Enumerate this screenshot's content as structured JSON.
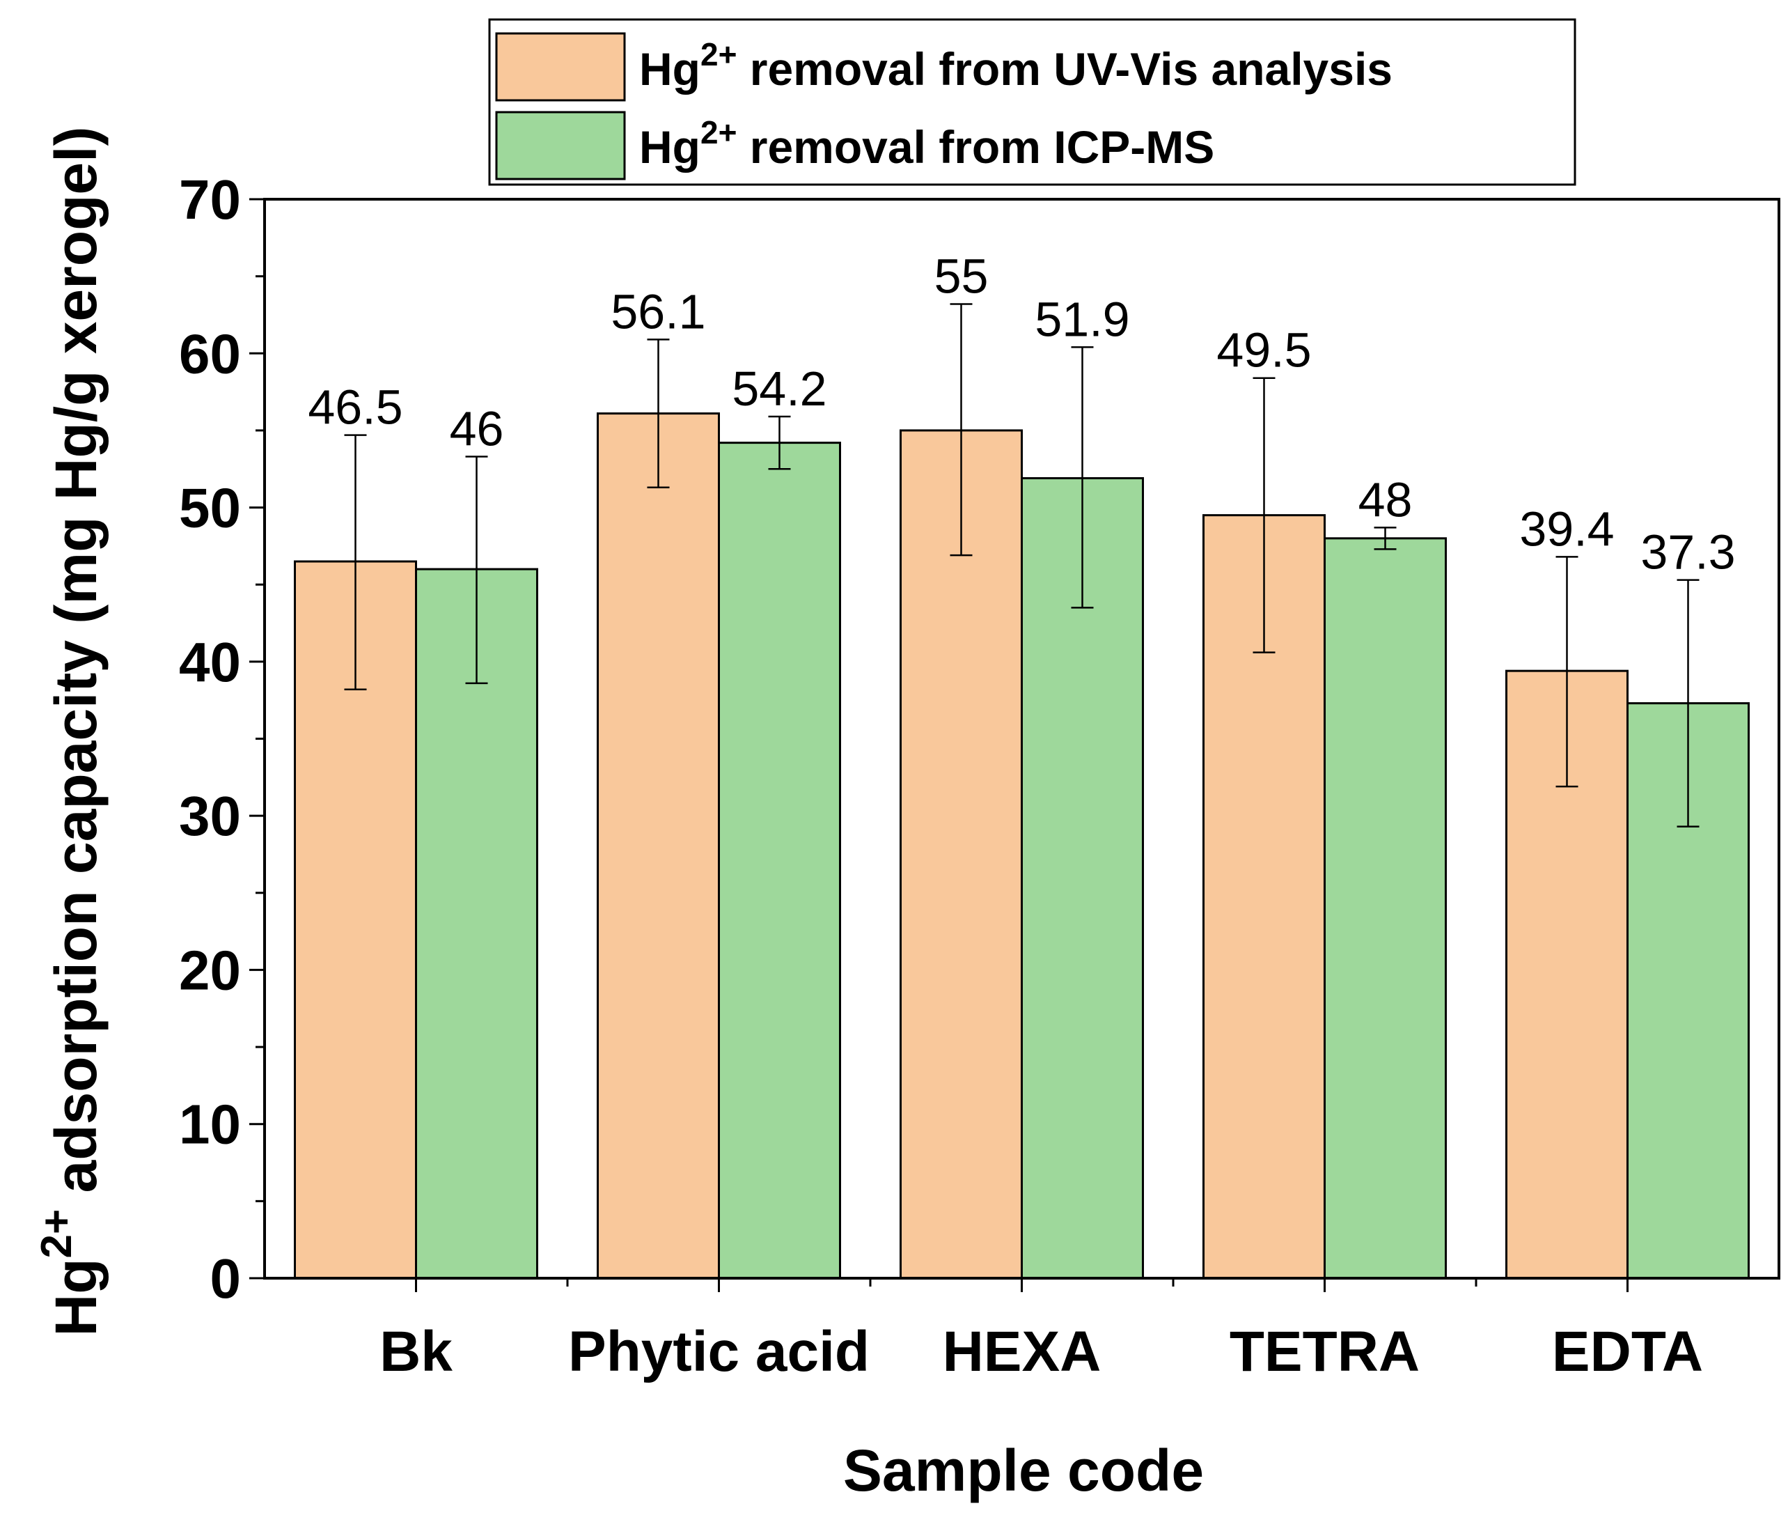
{
  "chart_data": {
    "type": "bar",
    "categories": [
      "Bk",
      "Phytic acid",
      "HEXA",
      "TETRA",
      "EDTA"
    ],
    "series": [
      {
        "name_prefix": "Hg",
        "name_sup": "2+",
        "name_suffix": " removal from UV-Vis analysis",
        "color": "#f9c89b",
        "values": [
          46.5,
          56.1,
          55,
          49.5,
          39.4
        ],
        "value_labels": [
          "46.5",
          "56.1",
          "55",
          "49.5",
          "39.4"
        ],
        "error_low": [
          38.2,
          51.3,
          46.9,
          40.6,
          31.9
        ],
        "error_high": [
          54.7,
          60.9,
          63.2,
          58.4,
          46.8
        ]
      },
      {
        "name_prefix": "Hg",
        "name_sup": "2+",
        "name_suffix": " removal from ICP-MS",
        "color": "#9ed89b",
        "values": [
          46,
          54.2,
          51.9,
          48,
          37.3
        ],
        "value_labels": [
          "46",
          "54.2",
          "51.9",
          "48",
          "37.3"
        ],
        "error_low": [
          38.6,
          52.5,
          43.5,
          47.3,
          29.3
        ],
        "error_high": [
          53.3,
          55.9,
          60.4,
          48.7,
          45.3
        ]
      }
    ],
    "xlabel": "Sample code",
    "ylabel_prefix": "Hg",
    "ylabel_sup": "2+",
    "ylabel_suffix": " adsorption capacity (mg Hg/g xerogel)",
    "ylim": [
      0,
      70
    ],
    "y_ticks": [
      0,
      10,
      20,
      30,
      40,
      50,
      60,
      70
    ],
    "grid": false,
    "legend_position": "top"
  }
}
